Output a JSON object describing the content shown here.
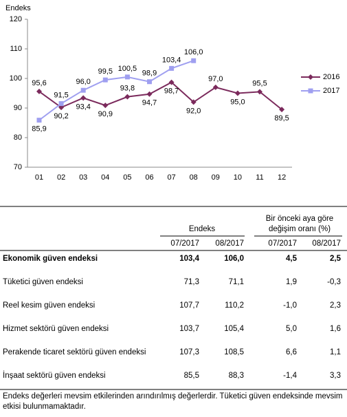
{
  "chart_data": {
    "type": "line",
    "ylabel": "Endeks",
    "categories": [
      "01",
      "02",
      "03",
      "04",
      "05",
      "06",
      "07",
      "08",
      "09",
      "10",
      "11",
      "12"
    ],
    "series": [
      {
        "name": "2016",
        "color": "#7b2a5c",
        "marker": "diamond",
        "values": [
          95.6,
          90.2,
          93.4,
          90.9,
          93.8,
          94.7,
          98.7,
          92.0,
          97.0,
          95.0,
          95.5,
          89.5
        ],
        "value_labels": [
          "95,6",
          "90,2",
          "93,4",
          "90,9",
          "93,8",
          "94,7",
          "98,7",
          "92,0",
          "97,0",
          "95,0",
          "95,5",
          "89,5"
        ]
      },
      {
        "name": "2017",
        "color": "#9f9ff0",
        "marker": "square",
        "values": [
          85.9,
          91.5,
          96.0,
          99.5,
          100.5,
          98.9,
          103.4,
          106.0,
          null,
          null,
          null,
          null
        ],
        "value_labels": [
          "85,9",
          "91,5",
          "96,0",
          "99,5",
          "100,5",
          "98,9",
          "103,4",
          "106,0",
          null,
          null,
          null,
          null
        ]
      }
    ],
    "ylim": [
      70,
      120
    ],
    "yticks": [
      70,
      80,
      90,
      100,
      110,
      120
    ],
    "legend": "right"
  },
  "table": {
    "group_headers": [
      [
        "Endeks"
      ],
      [
        "Bir önceki aya göre",
        "değişim oranı (%)"
      ]
    ],
    "columns": [
      "07/2017",
      "08/2017",
      "07/2017",
      "08/2017"
    ],
    "rows": [
      [
        "Ekonomik güven endeksi",
        "103,4",
        "106,0",
        "4,5",
        "2,5"
      ],
      [
        "Tüketici güven endeksi",
        "71,3",
        "71,1",
        "1,9",
        "-0,3"
      ],
      [
        "Reel kesim güven endeksi",
        "107,7",
        "110,2",
        "-1,0",
        "2,3"
      ],
      [
        "Hizmet sektörü güven endeksi",
        "103,7",
        "105,4",
        "5,0",
        "1,6"
      ],
      [
        "Perakende ticaret sektörü güven endeksi",
        "107,3",
        "108,5",
        "6,6",
        "1,1"
      ],
      [
        "İnşaat sektörü güven endeksi",
        "85,5",
        "88,3",
        "-1,4",
        "3,3"
      ]
    ],
    "footnote": "Endeks değerleri mevsim etkilerinden arındırılmış değerlerdir. Tüketici güven endeksinde mevsim etkisi bulunmamaktadır."
  }
}
